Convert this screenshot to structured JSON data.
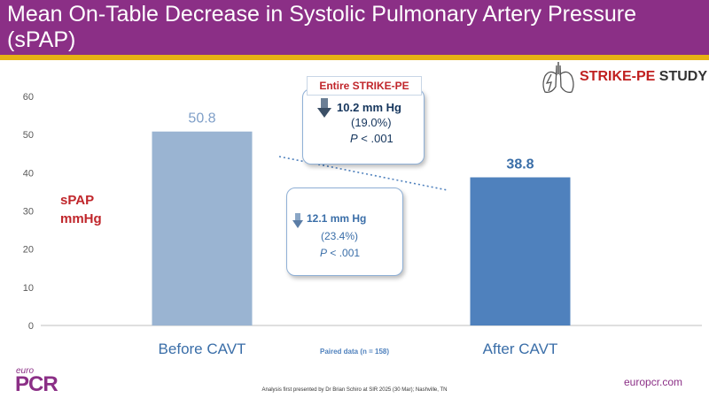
{
  "slide": {
    "title": "Mean On-Table Decrease in Systolic Pulmonary Artery Pressure (sPAP)",
    "logo_text_a": "STRIKE-PE",
    "logo_text_b": "STUDY",
    "ylabel_line1": "sPAP",
    "ylabel_line2": "mmHg",
    "callout_entire": {
      "header": "Entire STRIKE-PE",
      "value": "10.2 mm Hg",
      "percent": "(19.0%)",
      "p_prefix": "P",
      "p_rest": " < .001"
    },
    "callout_paired": {
      "value": "12.1 mm Hg",
      "percent": "(23.4%)",
      "p_prefix": "P",
      "p_rest": " < .001"
    },
    "paired_note": "Paired data (n = 158)",
    "footnote": "Analysis first presented by Dr Brian Schiro at SIR 2025 (30 Mar); Nashville, TN",
    "brand_small": "euro",
    "brand_large": "PCR",
    "website": "europcr.com"
  },
  "colors": {
    "header_bg": "#8b2f86",
    "accent_gold": "#e7b114",
    "bar_before": "#9ab4d2",
    "bar_after": "#4f81bd",
    "label_before": "#7f9fc8",
    "label_after": "#3a6ea8",
    "red_label": "#c0262b"
  },
  "chart_data": {
    "type": "bar",
    "categories": [
      "Before CAVT",
      "After CAVT"
    ],
    "values": [
      50.8,
      38.8
    ],
    "data_labels": [
      "50.8",
      "38.8"
    ],
    "ylabel": "sPAP mmHg",
    "ylim": [
      0,
      60
    ],
    "yticks": [
      0,
      10,
      20,
      30,
      40,
      50,
      60
    ],
    "grid": false,
    "trend_line": "dotted"
  }
}
